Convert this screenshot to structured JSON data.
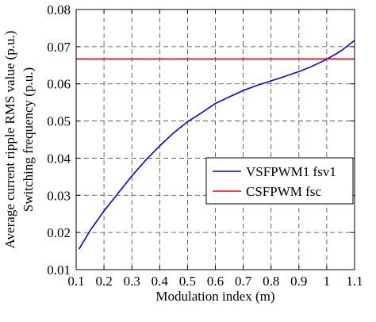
{
  "chart_data": {
    "type": "line",
    "xlabel": "Modulation index (m)",
    "ylabel_lines": [
      "Average current ripple RMS value (p.u.)",
      "Switching frequency (p.u.)"
    ],
    "xlim": [
      0.1,
      1.1
    ],
    "ylim": [
      0.01,
      0.08
    ],
    "xticks": [
      "0.1",
      "0.2",
      "0.3",
      "0.4",
      "0.5",
      "0.6",
      "0.7",
      "0.8",
      "0.9",
      "1",
      "1.1"
    ],
    "yticks": [
      "0.01",
      "0.02",
      "0.03",
      "0.04",
      "0.05",
      "0.06",
      "0.07",
      "0.08"
    ],
    "grid": true,
    "legend_position": "right",
    "series": [
      {
        "name": "VSFPWM1 fsv1",
        "color": "#0000ff",
        "x": [
          0.11,
          0.15,
          0.2,
          0.25,
          0.3,
          0.35,
          0.4,
          0.45,
          0.5,
          0.55,
          0.6,
          0.65,
          0.7,
          0.75,
          0.8,
          0.85,
          0.9,
          0.95,
          1.0,
          1.05,
          1.1
        ],
        "y": [
          0.0155,
          0.0205,
          0.0258,
          0.0305,
          0.0352,
          0.0395,
          0.0433,
          0.0468,
          0.0498,
          0.0522,
          0.0547,
          0.0565,
          0.0582,
          0.0596,
          0.0608,
          0.062,
          0.0633,
          0.0648,
          0.0666,
          0.0688,
          0.0717
        ]
      },
      {
        "name": "CSFPWM fsc",
        "color": "#ff0000",
        "x": [
          0.1,
          1.1
        ],
        "y": [
          0.0667,
          0.0667
        ]
      }
    ]
  }
}
